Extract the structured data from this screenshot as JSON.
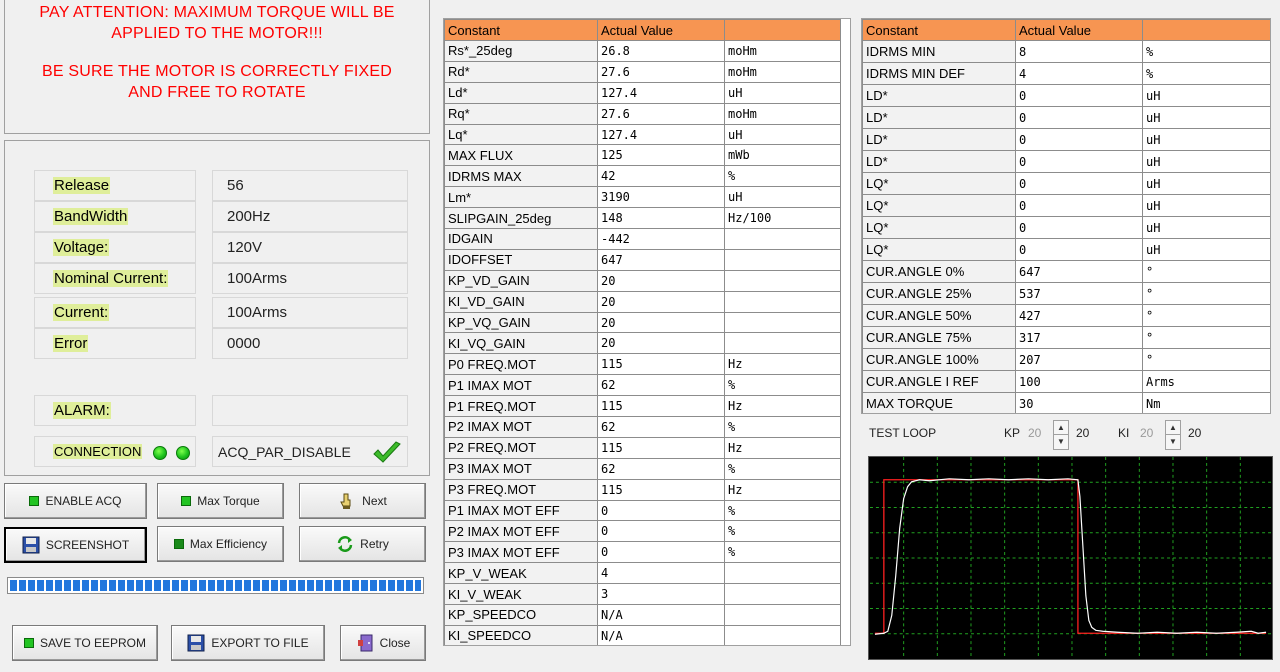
{
  "warning": {
    "line1": "PAY ATTENTION: MAXIMUM TORQUE WILL BE",
    "line2": "APPLIED TO THE MOTOR!!!",
    "line3": "BE SURE THE MOTOR IS CORRECTLY FIXED",
    "line4": "AND FREE TO ROTATE"
  },
  "info": {
    "release": {
      "label": "Release",
      "value": "56"
    },
    "bandwidth": {
      "label": "BandWidth",
      "value": "200Hz"
    },
    "voltage": {
      "label": "Voltage:",
      "value": "120V"
    },
    "nominal_current": {
      "label": "Nominal Current:",
      "value": "100Arms"
    },
    "current": {
      "label": "Current:",
      "value": "100Arms"
    },
    "error": {
      "label": "Error",
      "value": "0000"
    },
    "alarm": {
      "label": "ALARM:",
      "value": ""
    },
    "connection": {
      "label": "CONNECTION",
      "status": "ACQ_PAR_DISABLE"
    }
  },
  "buttons": {
    "enable_acq": "ENABLE ACQ",
    "max_torque": "Max Torque",
    "next": "Next",
    "screenshot": "SCREENSHOT",
    "max_efficiency": "Max Efficiency",
    "retry": "Retry",
    "save_eeprom": "SAVE TO EEPROM",
    "export_file": "EXPORT TO FILE",
    "close": "Close"
  },
  "progress": {
    "percent": 100
  },
  "left_table": {
    "headers": [
      "Constant",
      "Actual Value",
      ""
    ],
    "rows": [
      [
        "Rs*_25deg",
        "26.8",
        "moHm"
      ],
      [
        "Rd*",
        "27.6",
        "moHm"
      ],
      [
        "Ld*",
        "127.4",
        "uH"
      ],
      [
        "Rq*",
        "27.6",
        "moHm"
      ],
      [
        "Lq*",
        "127.4",
        "uH"
      ],
      [
        "MAX FLUX",
        "125",
        "mWb"
      ],
      [
        "IDRMS MAX",
        "42",
        "%"
      ],
      [
        "Lm*",
        "3190",
        "uH"
      ],
      [
        "SLIPGAIN_25deg",
        "148",
        "Hz/100"
      ],
      [
        "IDGAIN",
        "-442",
        ""
      ],
      [
        "IDOFFSET",
        "647",
        ""
      ],
      [
        "KP_VD_GAIN",
        "20",
        ""
      ],
      [
        "KI_VD_GAIN",
        "20",
        ""
      ],
      [
        "KP_VQ_GAIN",
        "20",
        ""
      ],
      [
        "KI_VQ_GAIN",
        "20",
        ""
      ],
      [
        "P0 FREQ.MOT",
        "115",
        "Hz"
      ],
      [
        "P1 IMAX MOT",
        "62",
        "%"
      ],
      [
        "P1 FREQ.MOT",
        "115",
        "Hz"
      ],
      [
        "P2 IMAX MOT",
        "62",
        "%"
      ],
      [
        "P2 FREQ.MOT",
        "115",
        "Hz"
      ],
      [
        "P3 IMAX MOT",
        "62",
        "%"
      ],
      [
        "P3 FREQ.MOT",
        "115",
        "Hz"
      ],
      [
        "P1 IMAX MOT EFF",
        "0",
        "%"
      ],
      [
        "P2 IMAX MOT EFF",
        "0",
        "%"
      ],
      [
        "P3 IMAX MOT EFF",
        "0",
        "%"
      ],
      [
        "KP_V_WEAK",
        "4",
        ""
      ],
      [
        "KI_V_WEAK",
        "3",
        ""
      ],
      [
        "KP_SPEEDCO",
        "N/A",
        ""
      ],
      [
        "KI_SPEEDCO",
        "N/A",
        ""
      ]
    ]
  },
  "right_table": {
    "headers": [
      "Constant",
      "Actual Value",
      ""
    ],
    "rows": [
      [
        "IDRMS MIN",
        "8",
        "%"
      ],
      [
        "IDRMS MIN DEF",
        "4",
        "%"
      ],
      [
        "LD*",
        "0",
        "uH"
      ],
      [
        "LD*",
        "0",
        "uH"
      ],
      [
        "LD*",
        "0",
        "uH"
      ],
      [
        "LD*",
        "0",
        "uH"
      ],
      [
        "LQ*",
        "0",
        "uH"
      ],
      [
        "LQ*",
        "0",
        "uH"
      ],
      [
        "LQ*",
        "0",
        "uH"
      ],
      [
        "LQ*",
        "0",
        "uH"
      ],
      [
        "CUR.ANGLE 0%",
        "647",
        "°"
      ],
      [
        "CUR.ANGLE 25%",
        "537",
        "°"
      ],
      [
        "CUR.ANGLE 50%",
        "427",
        "°"
      ],
      [
        "CUR.ANGLE 75%",
        "317",
        "°"
      ],
      [
        "CUR.ANGLE 100%",
        "207",
        "°"
      ],
      [
        "CUR.ANGLE I REF",
        "100",
        "Arms"
      ],
      [
        "MAX TORQUE",
        "30",
        "Nm"
      ]
    ]
  },
  "test_loop": {
    "title": "TEST LOOP",
    "kp_label": "KP",
    "kp_field": "20",
    "kp_value": "20",
    "ki_label": "KI",
    "ki_field": "20",
    "ki_value": "20",
    "colors": {
      "reference": "#ff2020",
      "response": "#ffffff",
      "grid": "#20a020"
    }
  }
}
